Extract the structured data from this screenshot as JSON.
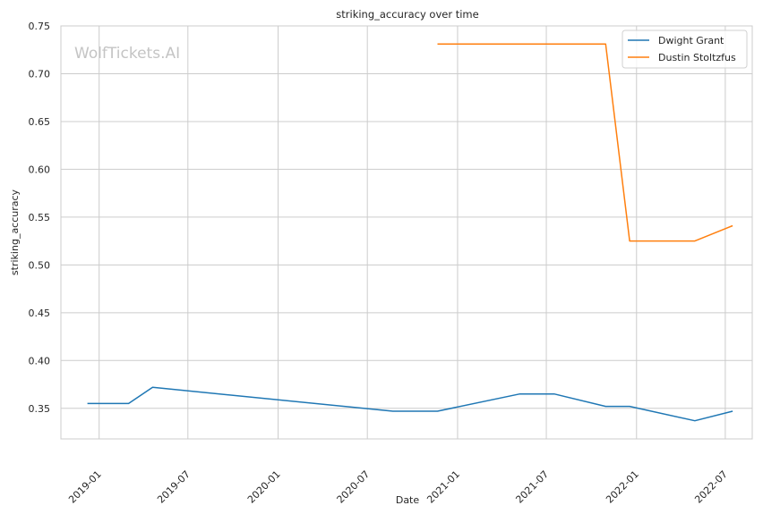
{
  "chart_data": {
    "type": "line",
    "title": "striking_accuracy over time",
    "xlabel": "Date",
    "ylabel": "striking_accuracy",
    "watermark": "WolfTickets.AI",
    "grid": true,
    "legend_position": "top-right",
    "xlim": [
      "2018-10-15",
      "2022-08-25"
    ],
    "ylim": [
      0.318,
      0.75
    ],
    "x_ticks": [
      "2019-01-01",
      "2019-07-01",
      "2020-01-01",
      "2020-07-01",
      "2021-01-01",
      "2021-07-01",
      "2022-01-01",
      "2022-07-01"
    ],
    "x_tick_labels": [
      "2019-01",
      "2019-07",
      "2020-01",
      "2020-07",
      "2021-01",
      "2021-07",
      "2022-01",
      "2022-07"
    ],
    "y_ticks": [
      0.35,
      0.4,
      0.45,
      0.5,
      0.55,
      0.6,
      0.65,
      0.7,
      0.75
    ],
    "y_tick_labels": [
      "0.35",
      "0.40",
      "0.45",
      "0.50",
      "0.55",
      "0.60",
      "0.65",
      "0.70",
      "0.75"
    ],
    "series": [
      {
        "name": "Dwight Grant",
        "color": "#1f77b4",
        "x": [
          "2018-12-08",
          "2019-03-02",
          "2019-04-20",
          "2020-08-22",
          "2020-11-21",
          "2021-05-08",
          "2021-07-17",
          "2021-10-30",
          "2021-12-18",
          "2022-04-30",
          "2022-07-16"
        ],
        "y": [
          0.355,
          0.355,
          0.372,
          0.347,
          0.347,
          0.365,
          0.365,
          0.352,
          0.352,
          0.337,
          0.347
        ]
      },
      {
        "name": "Dustin Stoltzfus",
        "color": "#ff7f0e",
        "x": [
          "2020-11-21",
          "2021-10-30",
          "2021-12-18",
          "2022-04-30",
          "2022-07-16"
        ],
        "y": [
          0.731,
          0.731,
          0.525,
          0.525,
          0.541
        ]
      }
    ]
  }
}
